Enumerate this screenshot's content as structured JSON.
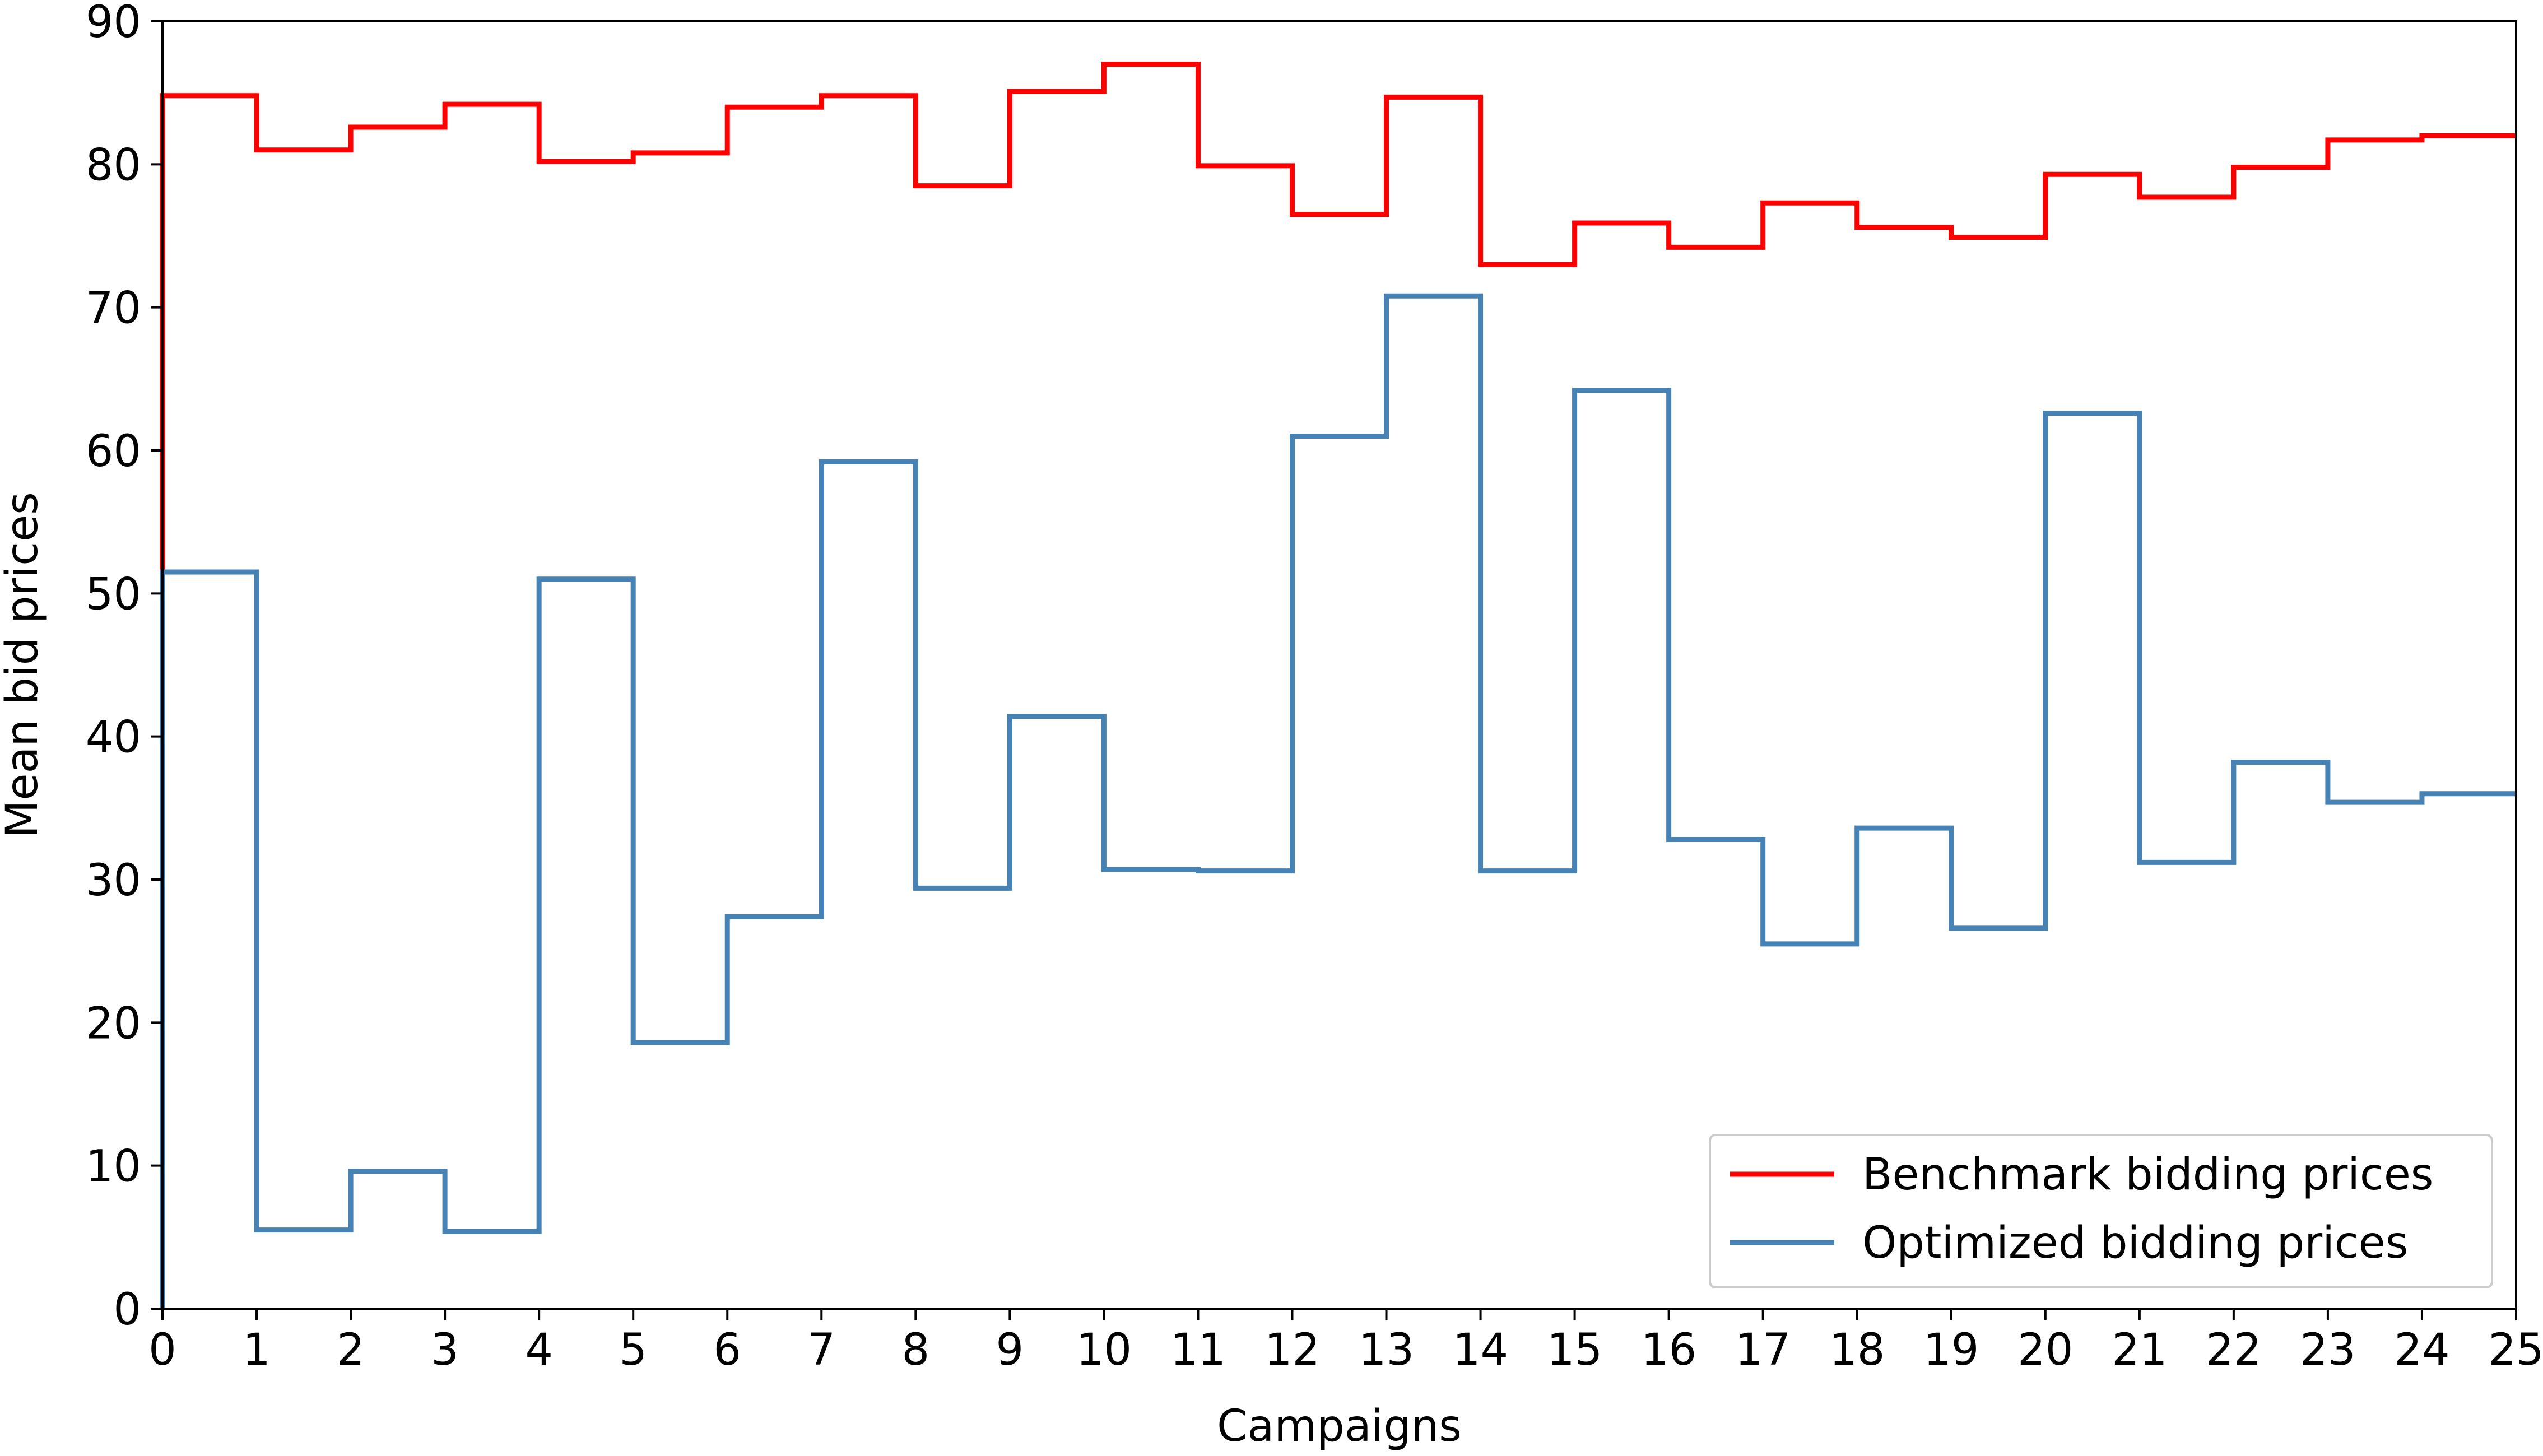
{
  "chart_data": {
    "type": "line",
    "step": "post",
    "title": "",
    "xlabel": "Campaigns",
    "ylabel": "Mean bid prices",
    "xlim": [
      0,
      25
    ],
    "ylim": [
      0,
      90
    ],
    "xticks": [
      0,
      1,
      2,
      3,
      4,
      5,
      6,
      7,
      8,
      9,
      10,
      11,
      12,
      13,
      14,
      15,
      16,
      17,
      18,
      19,
      20,
      21,
      22,
      23,
      24,
      25
    ],
    "yticks": [
      0,
      10,
      20,
      30,
      40,
      50,
      60,
      70,
      80,
      90
    ],
    "grid": false,
    "legend_position": "lower right",
    "x": [
      0,
      1,
      2,
      3,
      4,
      5,
      6,
      7,
      8,
      9,
      10,
      11,
      12,
      13,
      14,
      15,
      16,
      17,
      18,
      19,
      20,
      21,
      22,
      23,
      24,
      25
    ],
    "series": [
      {
        "name": "Benchmark bidding prices",
        "color": "#ff0000",
        "values": [
          84.8,
          81.0,
          82.6,
          84.2,
          80.2,
          80.8,
          84.0,
          84.8,
          78.5,
          85.1,
          87.0,
          79.9,
          76.5,
          84.7,
          73.0,
          75.9,
          74.2,
          77.3,
          75.6,
          74.9,
          79.3,
          77.7,
          79.8,
          81.7,
          82.0,
          82.0
        ]
      },
      {
        "name": "Optimized bidding prices",
        "color": "#4682b4",
        "values": [
          51.5,
          5.5,
          9.6,
          5.4,
          51.0,
          18.6,
          27.4,
          59.2,
          29.4,
          41.4,
          30.7,
          30.6,
          61.0,
          70.8,
          30.6,
          64.2,
          32.8,
          25.5,
          33.6,
          26.6,
          62.6,
          31.2,
          38.2,
          35.4,
          36.0,
          36.0
        ]
      }
    ]
  }
}
